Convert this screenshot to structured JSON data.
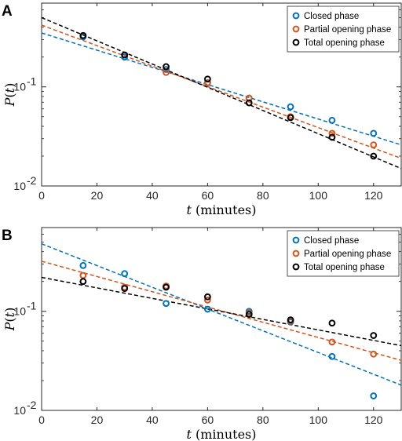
{
  "chart_data": [
    {
      "type": "scatter",
      "panel_label": "A",
      "xlabel": "t (minutes)",
      "ylabel": "P(t)",
      "xlim": [
        0,
        130
      ],
      "ylim": [
        0.01,
        0.7
      ],
      "y_scale": "log",
      "x_ticks": [
        "0",
        "20",
        "40",
        "60",
        "80",
        "100",
        "120"
      ],
      "y_ticks": [
        {
          "base": "10",
          "exp": "-2"
        },
        {
          "base": "10",
          "exp": "-1"
        }
      ],
      "grid": false,
      "legend_position": "top-right",
      "x": [
        15,
        30,
        45,
        60,
        75,
        90,
        105,
        120
      ],
      "series": [
        {
          "name": "Closed phase",
          "color": "#0072BD",
          "marker": "circle",
          "values": [
            0.32,
            0.2,
            0.15,
            0.11,
            0.077,
            0.063,
            0.046,
            0.034
          ],
          "fit_line": [
            [
              0,
              0.35
            ],
            [
              130,
              0.026
            ]
          ]
        },
        {
          "name": "Partial opening phase",
          "color": "#D95319",
          "marker": "circle",
          "values": [
            0.33,
            0.21,
            0.14,
            0.11,
            0.077,
            0.05,
            0.034,
            0.026
          ],
          "fit_line": [
            [
              0,
              0.42
            ],
            [
              130,
              0.019
            ]
          ]
        },
        {
          "name": "Total opening phase",
          "color": "#000000",
          "marker": "circle",
          "values": [
            0.33,
            0.21,
            0.16,
            0.12,
            0.069,
            0.049,
            0.031,
            0.02
          ],
          "fit_line": [
            [
              0,
              0.5
            ],
            [
              130,
              0.015
            ]
          ]
        }
      ]
    },
    {
      "type": "scatter",
      "panel_label": "B",
      "xlabel": "t (minutes)",
      "ylabel": "P(t)",
      "xlim": [
        0,
        130
      ],
      "ylim": [
        0.01,
        0.7
      ],
      "y_scale": "log",
      "x_ticks": [
        "0",
        "20",
        "40",
        "60",
        "80",
        "100",
        "120"
      ],
      "y_ticks": [
        {
          "base": "10",
          "exp": "-2"
        },
        {
          "base": "10",
          "exp": "-1"
        }
      ],
      "grid": false,
      "legend_position": "top-right",
      "x": [
        15,
        30,
        45,
        60,
        75,
        90,
        105,
        120
      ],
      "series": [
        {
          "name": "Closed phase",
          "color": "#0072BD",
          "marker": "circle",
          "values": [
            0.29,
            0.24,
            0.12,
            0.105,
            0.1,
            0.078,
            0.035,
            0.014
          ],
          "fit_line": [
            [
              0,
              0.48
            ],
            [
              130,
              0.018
            ]
          ]
        },
        {
          "name": "Partial opening phase",
          "color": "#D95319",
          "marker": "circle",
          "values": [
            0.23,
            0.175,
            0.18,
            0.13,
            0.096,
            0.08,
            0.049,
            0.037
          ],
          "fit_line": [
            [
              0,
              0.32
            ],
            [
              130,
              0.032
            ]
          ]
        },
        {
          "name": "Total opening phase",
          "color": "#000000",
          "marker": "circle",
          "values": [
            0.2,
            0.17,
            0.175,
            0.14,
            0.093,
            0.082,
            0.076,
            0.057
          ],
          "fit_line": [
            [
              0,
              0.22
            ],
            [
              130,
              0.045
            ]
          ]
        }
      ]
    }
  ]
}
